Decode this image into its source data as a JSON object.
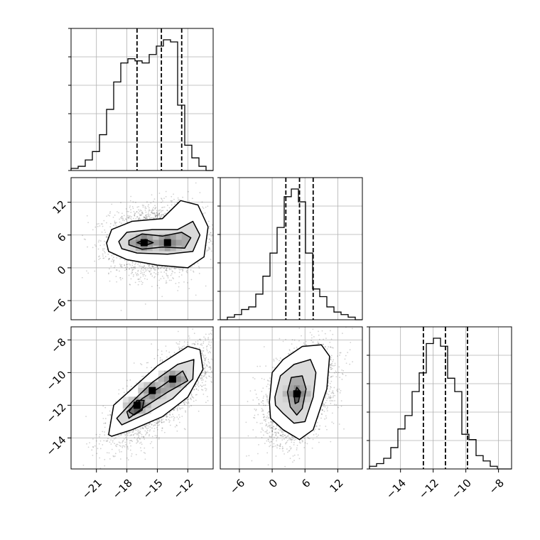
{
  "chart_data": {
    "type": "corner",
    "title": "",
    "parameters": [
      {
        "name": "",
        "range": [
          -23.5,
          -9.5
        ],
        "ticks": [
          -21,
          -18,
          -15,
          -12
        ],
        "tick_labels": [
          "−21",
          "−18",
          "−15",
          "−12"
        ],
        "quantiles": [
          -17.0,
          -14.6,
          -12.6
        ],
        "hist": {
          "edges_start": -23.5,
          "bin_width": 0.7,
          "counts": [
            1,
            2,
            5,
            9,
            17,
            29,
            42,
            51,
            53,
            52,
            51,
            55,
            59,
            62,
            61,
            31,
            12,
            6,
            2,
            0
          ]
        }
      },
      {
        "name": "",
        "range": [
          -9.5,
          16.5
        ],
        "ticks": [
          -6,
          0,
          6,
          12
        ],
        "tick_labels": [
          "−6",
          "0",
          "6",
          "12"
        ],
        "quantiles": [
          2.5,
          5.0,
          7.5
        ],
        "hist": {
          "edges_start": -9.5,
          "bin_width": 1.3,
          "counts": [
            0,
            1,
            2,
            4,
            5,
            10,
            17,
            26,
            36,
            48,
            51,
            46,
            26,
            12,
            9,
            5,
            3,
            2,
            1,
            0
          ]
        }
      },
      {
        "name": "",
        "range": [
          -15.9,
          -7.2
        ],
        "ticks": [
          -14,
          -12,
          -10,
          -8
        ],
        "tick_labels": [
          "−14",
          "−12",
          "−10",
          "−8"
        ],
        "quantiles": [
          -12.6,
          -11.25,
          -9.9
        ],
        "hist": {
          "edges_start": -15.9,
          "bin_width": 0.435,
          "counts": [
            1,
            2,
            4,
            8,
            15,
            20,
            29,
            36,
            47,
            49,
            46,
            34,
            29,
            13,
            11,
            5,
            3,
            1,
            0,
            0
          ]
        }
      }
    ],
    "pairs": [
      {
        "row": 1,
        "col": 0,
        "mean": [
          -15.0,
          5.0
        ],
        "sd": [
          2.3,
          3.0
        ],
        "rho": 0.05,
        "modes": [
          [
            -16.3,
            4.6
          ],
          [
            -14.0,
            4.6
          ]
        ],
        "contours": [
          [
            [
              -20.0,
              4.5
            ],
            [
              -19.5,
              7.0
            ],
            [
              -17.5,
              8.5
            ],
            [
              -14.5,
              9.0
            ],
            [
              -12.7,
              12.3
            ],
            [
              -11.0,
              11.5
            ],
            [
              -10.0,
              7.5
            ],
            [
              -10.4,
              2.0
            ],
            [
              -12.0,
              0.0
            ],
            [
              -15.0,
              0.5
            ],
            [
              -18.0,
              1.5
            ],
            [
              -19.8,
              3.0
            ]
          ],
          [
            [
              -18.8,
              4.8
            ],
            [
              -18.0,
              6.5
            ],
            [
              -15.5,
              7.0
            ],
            [
              -13.0,
              7.0
            ],
            [
              -11.5,
              8.5
            ],
            [
              -10.8,
              6.0
            ],
            [
              -11.5,
              3.0
            ],
            [
              -14.0,
              2.5
            ],
            [
              -17.0,
              2.7
            ],
            [
              -18.5,
              3.5
            ]
          ],
          [
            [
              -17.8,
              5.0
            ],
            [
              -16.5,
              6.2
            ],
            [
              -14.5,
              5.8
            ],
            [
              -12.6,
              6.5
            ],
            [
              -11.7,
              5.5
            ],
            [
              -12.3,
              3.6
            ],
            [
              -14.5,
              3.8
            ],
            [
              -16.5,
              3.4
            ],
            [
              -17.8,
              4.2
            ]
          ],
          [
            [
              -17.0,
              4.6
            ],
            [
              -16.2,
              5.2
            ],
            [
              -15.4,
              4.6
            ],
            [
              -16.2,
              4.1
            ]
          ]
        ]
      },
      {
        "row": 2,
        "col": 0,
        "mean": [
          -14.6,
          -11.3
        ],
        "sd": [
          2.3,
          1.4
        ],
        "rho": 0.75,
        "modes": [
          [
            -17.0,
            -12.0
          ],
          [
            -15.5,
            -11.1
          ],
          [
            -13.5,
            -10.4
          ]
        ],
        "contours": [
          [
            [
              -19.8,
              -13.8
            ],
            [
              -19.3,
              -12.0
            ],
            [
              -17.5,
              -11.0
            ],
            [
              -15.0,
              -9.6
            ],
            [
              -12.0,
              -8.4
            ],
            [
              -10.8,
              -8.6
            ],
            [
              -10.5,
              -9.8
            ],
            [
              -12.0,
              -11.5
            ],
            [
              -14.5,
              -12.7
            ],
            [
              -17.5,
              -13.5
            ],
            [
              -19.5,
              -13.9
            ]
          ],
          [
            [
              -19.0,
              -12.8
            ],
            [
              -17.5,
              -11.8
            ],
            [
              -15.5,
              -10.6
            ],
            [
              -13.0,
              -9.5
            ],
            [
              -11.4,
              -9.2
            ],
            [
              -11.5,
              -10.4
            ],
            [
              -13.5,
              -11.6
            ],
            [
              -16.0,
              -12.5
            ],
            [
              -18.5,
              -13.2
            ]
          ],
          [
            [
              -18.0,
              -12.4
            ],
            [
              -16.5,
              -11.6
            ],
            [
              -14.5,
              -10.8
            ],
            [
              -12.5,
              -9.9
            ],
            [
              -12.0,
              -10.5
            ],
            [
              -14.0,
              -11.2
            ],
            [
              -16.5,
              -12.2
            ],
            [
              -17.8,
              -12.8
            ]
          ],
          [
            [
              -17.8,
              -12.4
            ],
            [
              -17.0,
              -11.7
            ],
            [
              -16.3,
              -11.7
            ],
            [
              -16.5,
              -12.3
            ],
            [
              -17.3,
              -12.6
            ]
          ]
        ]
      },
      {
        "row": 2,
        "col": 1,
        "mean": [
          5.0,
          -11.3
        ],
        "sd": [
          3.0,
          1.4
        ],
        "rho": 0.4,
        "modes": [
          [
            4.5,
            -11.3
          ]
        ],
        "contours": [
          [
            [
              -0.5,
              -11.8
            ],
            [
              0.0,
              -10.0
            ],
            [
              2.0,
              -9.2
            ],
            [
              5.5,
              -8.4
            ],
            [
              9.0,
              -8.3
            ],
            [
              10.5,
              -9.0
            ],
            [
              10.0,
              -11.0
            ],
            [
              7.5,
              -13.5
            ],
            [
              5.0,
              -14.1
            ],
            [
              2.0,
              -13.5
            ],
            [
              -0.3,
              -12.8
            ]
          ],
          [
            [
              0.5,
              -11.5
            ],
            [
              1.5,
              -10.2
            ],
            [
              4.0,
              -9.5
            ],
            [
              7.0,
              -9.2
            ],
            [
              8.0,
              -10.0
            ],
            [
              7.5,
              -11.5
            ],
            [
              6.0,
              -13.0
            ],
            [
              4.0,
              -13.1
            ],
            [
              2.0,
              -12.5
            ],
            [
              0.6,
              -12.0
            ]
          ],
          [
            [
              2.8,
              -11.2
            ],
            [
              3.5,
              -10.3
            ],
            [
              5.5,
              -10.2
            ],
            [
              6.2,
              -11.0
            ],
            [
              5.5,
              -12.2
            ],
            [
              4.5,
              -12.6
            ],
            [
              3.3,
              -12.1
            ]
          ],
          [
            [
              4.0,
              -11.4
            ],
            [
              4.5,
              -10.9
            ],
            [
              5.2,
              -11.2
            ],
            [
              4.8,
              -11.8
            ],
            [
              4.2,
              -11.9
            ]
          ]
        ]
      }
    ]
  }
}
